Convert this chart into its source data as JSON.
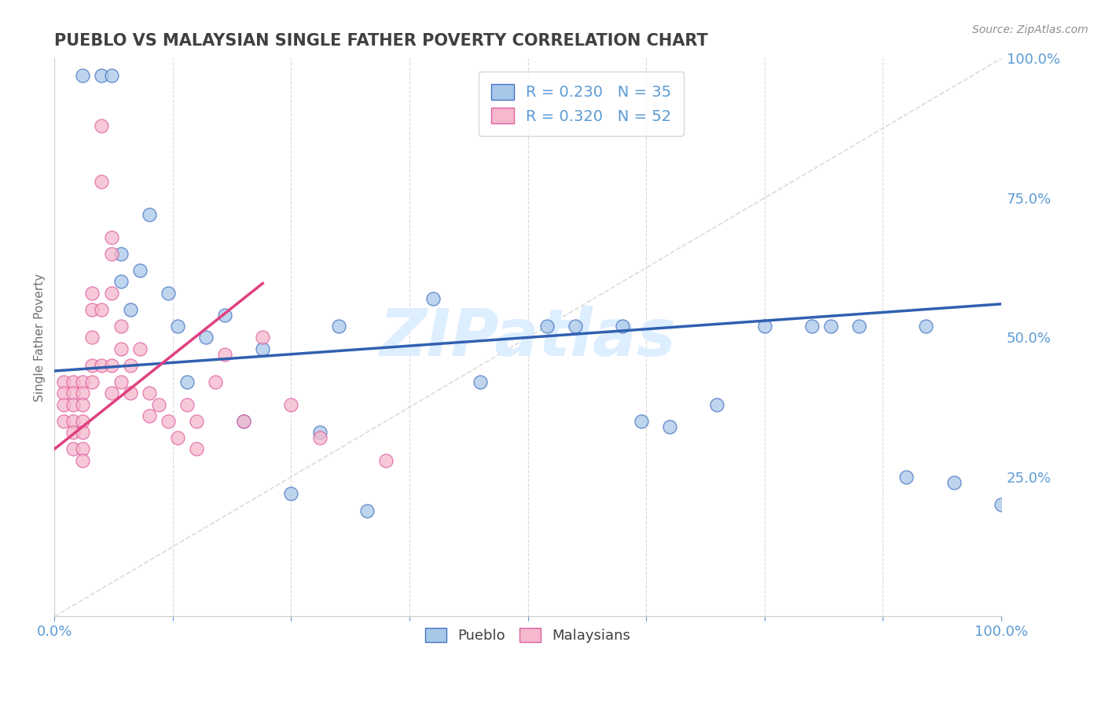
{
  "title": "PUEBLO VS MALAYSIAN SINGLE FATHER POVERTY CORRELATION CHART",
  "source_text": "Source: ZipAtlas.com",
  "ylabel": "Single Father Poverty",
  "xlim": [
    0.0,
    1.0
  ],
  "ylim": [
    0.0,
    1.0
  ],
  "pueblo_R": 0.23,
  "pueblo_N": 35,
  "malaysian_R": 0.32,
  "malaysian_N": 52,
  "pueblo_color": "#a8c8e8",
  "malaysian_color": "#f5b8cc",
  "pueblo_edge_color": "#4472c4",
  "malaysian_edge_color": "#e060a0",
  "pueblo_line_color": "#3060b0",
  "malaysian_line_color": "#e04080",
  "identity_line_color": "#cccccc",
  "grid_color": "#d0d0d0",
  "axis_tick_color": "#5b9bd5",
  "title_color": "#404040",
  "watermark_color": "#ddeeff",
  "pueblo_x": [
    0.03,
    0.05,
    0.06,
    0.07,
    0.07,
    0.08,
    0.09,
    0.1,
    0.12,
    0.13,
    0.14,
    0.16,
    0.18,
    0.2,
    0.22,
    0.25,
    0.28,
    0.3,
    0.33,
    0.4,
    0.45,
    0.52,
    0.55,
    0.6,
    0.62,
    0.65,
    0.7,
    0.75,
    0.8,
    0.82,
    0.85,
    0.9,
    0.92,
    0.95,
    1.0
  ],
  "pueblo_y": [
    0.97,
    0.97,
    0.97,
    0.65,
    0.6,
    0.55,
    0.62,
    0.72,
    0.58,
    0.52,
    0.42,
    0.5,
    0.54,
    0.35,
    0.48,
    0.22,
    0.33,
    0.52,
    0.19,
    0.57,
    0.42,
    0.52,
    0.52,
    0.52,
    0.35,
    0.34,
    0.38,
    0.52,
    0.52,
    0.52,
    0.52,
    0.25,
    0.52,
    0.24,
    0.2
  ],
  "malaysian_x": [
    0.01,
    0.01,
    0.01,
    0.01,
    0.02,
    0.02,
    0.02,
    0.02,
    0.02,
    0.02,
    0.03,
    0.03,
    0.03,
    0.03,
    0.03,
    0.03,
    0.03,
    0.04,
    0.04,
    0.04,
    0.04,
    0.04,
    0.05,
    0.05,
    0.05,
    0.05,
    0.06,
    0.06,
    0.06,
    0.06,
    0.06,
    0.07,
    0.07,
    0.07,
    0.08,
    0.08,
    0.09,
    0.1,
    0.1,
    0.11,
    0.12,
    0.13,
    0.14,
    0.15,
    0.15,
    0.17,
    0.18,
    0.2,
    0.22,
    0.25,
    0.28,
    0.35
  ],
  "malaysian_y": [
    0.42,
    0.4,
    0.38,
    0.35,
    0.42,
    0.4,
    0.38,
    0.35,
    0.33,
    0.3,
    0.42,
    0.4,
    0.38,
    0.35,
    0.33,
    0.3,
    0.28,
    0.58,
    0.55,
    0.5,
    0.45,
    0.42,
    0.78,
    0.88,
    0.55,
    0.45,
    0.68,
    0.65,
    0.58,
    0.45,
    0.4,
    0.52,
    0.48,
    0.42,
    0.45,
    0.4,
    0.48,
    0.4,
    0.36,
    0.38,
    0.35,
    0.32,
    0.38,
    0.35,
    0.3,
    0.42,
    0.47,
    0.35,
    0.5,
    0.38,
    0.32,
    0.28
  ],
  "pueblo_trend_x0": 0.0,
  "pueblo_trend_y0": 0.44,
  "pueblo_trend_x1": 1.0,
  "pueblo_trend_y1": 0.56,
  "malaysian_trend_x0": 0.0,
  "malaysian_trend_y0": 0.3,
  "malaysian_trend_x1": 0.2,
  "malaysian_trend_y1": 0.57
}
